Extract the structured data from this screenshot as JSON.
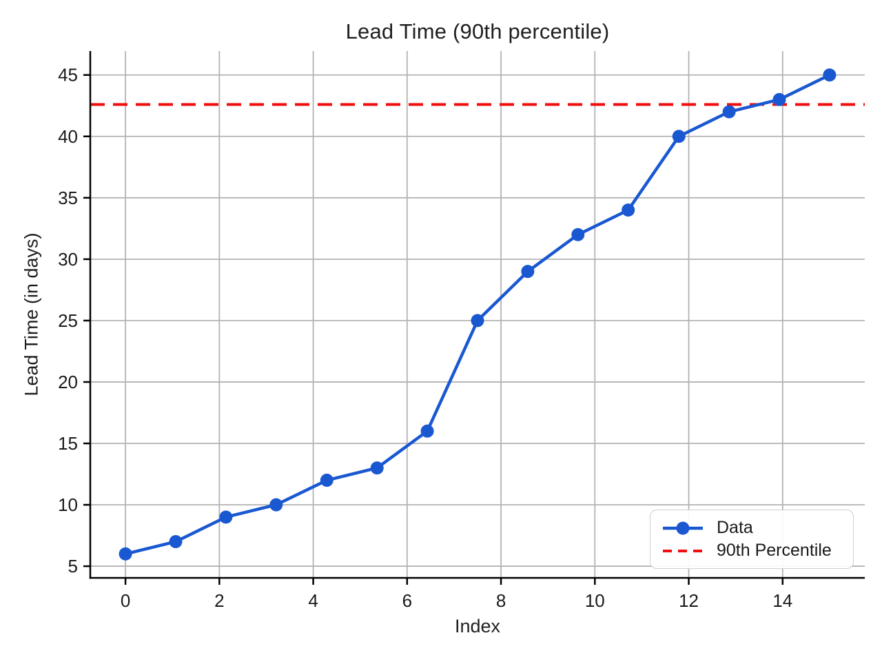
{
  "title": "Lead Time (90th percentile)",
  "x_axis_label": "Index",
  "y_axis_label": "Lead Time (in days)",
  "legend": {
    "data_label": "Data",
    "percentile_label": "90th Percentile"
  },
  "colors": {
    "line": "#1a58d2",
    "percentile_line": "#f10d0d",
    "grid": "#b3b3b3",
    "spine": "#000000",
    "text": "#1a1a1a"
  },
  "chart_data": {
    "type": "line",
    "title": "Lead Time (90th percentile)",
    "xlabel": "Index",
    "ylabel": "Lead Time (in days)",
    "x": [
      0,
      1.07,
      2.14,
      3.21,
      4.29,
      5.36,
      6.43,
      7.5,
      8.57,
      9.64,
      10.71,
      11.79,
      12.86,
      13.93,
      15
    ],
    "y": [
      6,
      7,
      9,
      10,
      12,
      13,
      16,
      25,
      29,
      32,
      34,
      40,
      42,
      43,
      45
    ],
    "series": [
      {
        "name": "Data",
        "style": "solid line with circle markers",
        "color": "#1a58d2"
      },
      {
        "name": "90th Percentile",
        "style": "dashed horizontal line",
        "color": "#f10d0d",
        "value": 42.6
      }
    ],
    "percentile_value": 42.6,
    "xlim": [
      -0.75,
      15.75
    ],
    "ylim": [
      4.05,
      46.95
    ],
    "x_ticks": [
      0,
      2,
      4,
      6,
      8,
      10,
      12,
      14
    ],
    "y_ticks": [
      5,
      10,
      15,
      20,
      25,
      30,
      35,
      40,
      45
    ],
    "grid": true,
    "legend_position": "lower right"
  }
}
